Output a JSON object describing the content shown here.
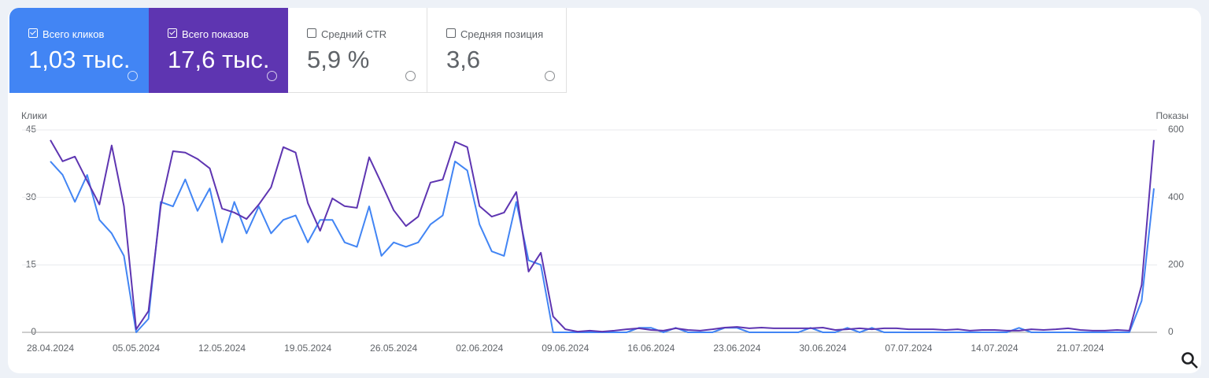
{
  "metrics": [
    {
      "label": "Всего кликов",
      "value": "1,03 тыс.",
      "selected": true,
      "color": "#4285f4"
    },
    {
      "label": "Всего показов",
      "value": "17,6 тыс.",
      "selected": true,
      "color": "#5e35b1"
    },
    {
      "label": "Средний CTR",
      "value": "5,9 %",
      "selected": false,
      "color": "#ffffff"
    },
    {
      "label": "Средняя позиция",
      "value": "3,6",
      "selected": false,
      "color": "#ffffff"
    }
  ],
  "chart_data": {
    "type": "line",
    "y_label": "Клики",
    "y2_label": "Показы",
    "categories": [
      "28.04.2024",
      null,
      null,
      null,
      null,
      null,
      null,
      "05.05.2024",
      null,
      null,
      null,
      null,
      null,
      null,
      "12.05.2024",
      null,
      null,
      null,
      null,
      null,
      null,
      "19.05.2024",
      null,
      null,
      null,
      null,
      null,
      null,
      "26.05.2024",
      null,
      null,
      null,
      null,
      null,
      null,
      "02.06.2024",
      null,
      null,
      null,
      null,
      null,
      null,
      "09.06.2024",
      null,
      null,
      null,
      null,
      null,
      null,
      "16.06.2024",
      null,
      null,
      null,
      null,
      null,
      null,
      "23.06.2024",
      null,
      null,
      null,
      null,
      null,
      null,
      "30.06.2024",
      null,
      null,
      null,
      null,
      null,
      null,
      "07.07.2024",
      null,
      null,
      null,
      null,
      null,
      null,
      "14.07.2024",
      null,
      null,
      null,
      null,
      null,
      null,
      "21.07.2024",
      null,
      null,
      null,
      null,
      null,
      null
    ],
    "series": [
      {
        "name": "Всего кликов",
        "color": "#4285f4",
        "axis": "y",
        "values": [
          38,
          35,
          29,
          35,
          25,
          22,
          17,
          0,
          3,
          29,
          28,
          34,
          27,
          32,
          20,
          29,
          22,
          28,
          22,
          25,
          26,
          20,
          25,
          25,
          20,
          19,
          28,
          17,
          20,
          19,
          20,
          24,
          26,
          38,
          36,
          24,
          18,
          17,
          29,
          16,
          15,
          0,
          0,
          0,
          0,
          0,
          0,
          0,
          1,
          1,
          0,
          1,
          0,
          0,
          0,
          1,
          1,
          0,
          0,
          0,
          0,
          0,
          1,
          0,
          0,
          1,
          0,
          1,
          0,
          0,
          0,
          0,
          0,
          0,
          0,
          0,
          0,
          0,
          0,
          1,
          0,
          0,
          0,
          0,
          0,
          0,
          0,
          0,
          0,
          7,
          32
        ]
      },
      {
        "name": "Всего показов",
        "color": "#5e35b1",
        "axis": "y2",
        "values": [
          570,
          507,
          521,
          449,
          379,
          554,
          374,
          9,
          63,
          374,
          537,
          533,
          514,
          486,
          367,
          355,
          336,
          379,
          430,
          549,
          533,
          383,
          301,
          397,
          374,
          369,
          519,
          442,
          362,
          315,
          343,
          444,
          453,
          565,
          549,
          374,
          343,
          355,
          416,
          180,
          236,
          47,
          9,
          2,
          5,
          2,
          5,
          9,
          12,
          7,
          5,
          12,
          7,
          5,
          9,
          14,
          16,
          12,
          14,
          12,
          12,
          12,
          12,
          14,
          7,
          9,
          12,
          9,
          12,
          12,
          9,
          9,
          9,
          7,
          9,
          5,
          7,
          7,
          5,
          5,
          9,
          7,
          9,
          12,
          7,
          5,
          5,
          7,
          5,
          140,
          570
        ]
      }
    ],
    "ylim": [
      0,
      45
    ],
    "yticks": [
      0,
      15,
      30,
      45
    ],
    "y2lim": [
      0,
      600
    ],
    "y2ticks": [
      0,
      200,
      400,
      600
    ],
    "grid": true
  }
}
